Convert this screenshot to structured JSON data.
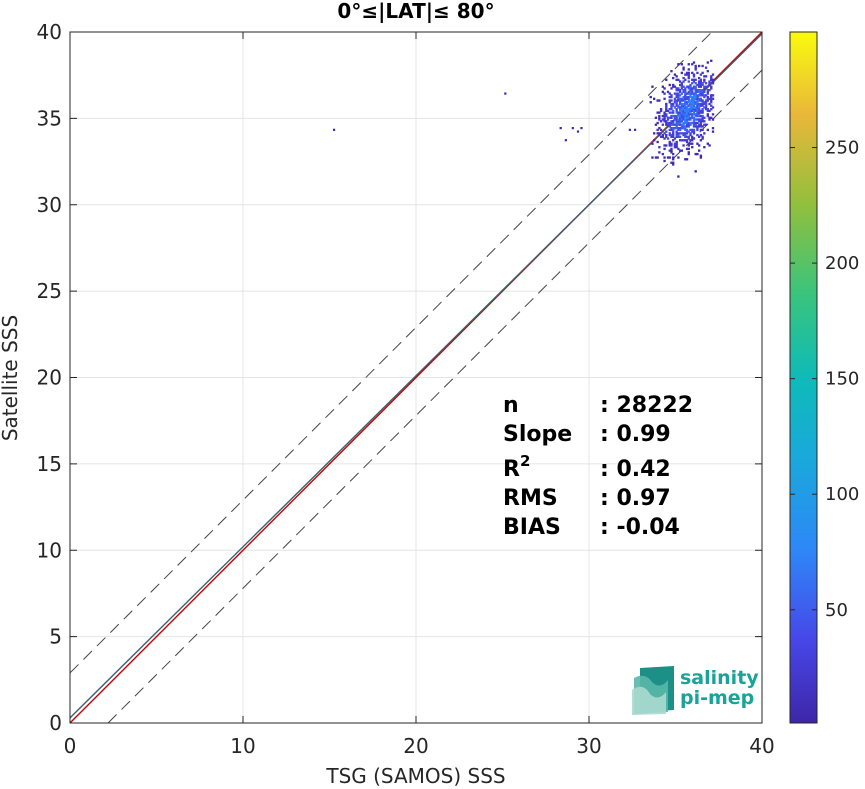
{
  "chart_data": {
    "type": "heatmap",
    "title": "0°≤|LAT|≤ 80°",
    "xlabel": "TSG (SAMOS) SSS",
    "ylabel": "Satellite SSS",
    "xlim": [
      0,
      40
    ],
    "ylim": [
      0,
      40
    ],
    "xticks": [
      "0",
      "10",
      "20",
      "30",
      "40"
    ],
    "yticks": [
      "0",
      "5",
      "10",
      "15",
      "20",
      "25",
      "30",
      "35",
      "40"
    ],
    "grid": true,
    "colorbar": {
      "range": [
        1,
        300
      ],
      "ticks": [
        "50",
        "100",
        "150",
        "200",
        "250"
      ],
      "tick_values": [
        50,
        100,
        150,
        200,
        250
      ],
      "colormap": "parula"
    },
    "reference_lines": [
      {
        "name": "1:1 line",
        "color": "#cc0000",
        "style": "solid",
        "points": [
          [
            0,
            0
          ],
          [
            40,
            40
          ]
        ]
      },
      {
        "name": "regression fit",
        "color": "#3a5f72",
        "style": "solid",
        "points": [
          [
            0,
            0.3
          ],
          [
            40,
            39.9
          ]
        ]
      },
      {
        "name": "upper bound",
        "color": "#444444",
        "style": "dashed",
        "points": [
          [
            0,
            2.9
          ],
          [
            40,
            42.9
          ]
        ]
      },
      {
        "name": "lower bound",
        "color": "#444444",
        "style": "dashed",
        "points": [
          [
            2.2,
            0
          ],
          [
            40,
            37.8
          ]
        ]
      }
    ],
    "cluster": {
      "x_range": [
        33.5,
        37.2
      ],
      "y_range": [
        30,
        38.5
      ],
      "peak_density": 75
    },
    "outliers": [
      [
        15.2,
        34.4
      ],
      [
        25.1,
        36.5
      ],
      [
        28.3,
        34.5
      ],
      [
        29.0,
        34.5
      ],
      [
        29.5,
        34.5
      ],
      [
        29.3,
        34.3
      ],
      [
        28.6,
        33.8
      ],
      [
        32.3,
        34.4
      ],
      [
        32.6,
        34.4
      ]
    ],
    "stats": [
      {
        "label": "n",
        "value": ": 28222"
      },
      {
        "label": "Slope",
        "value": ": 0.99"
      },
      {
        "label": "R",
        "sup": "2",
        "value": ": 0.42"
      },
      {
        "label": "RMS",
        "value": ": 0.97"
      },
      {
        "label": "BIAS",
        "value": ": -0.04"
      }
    ]
  },
  "logo": {
    "line1": "salinity",
    "line2": "pi-mep"
  }
}
